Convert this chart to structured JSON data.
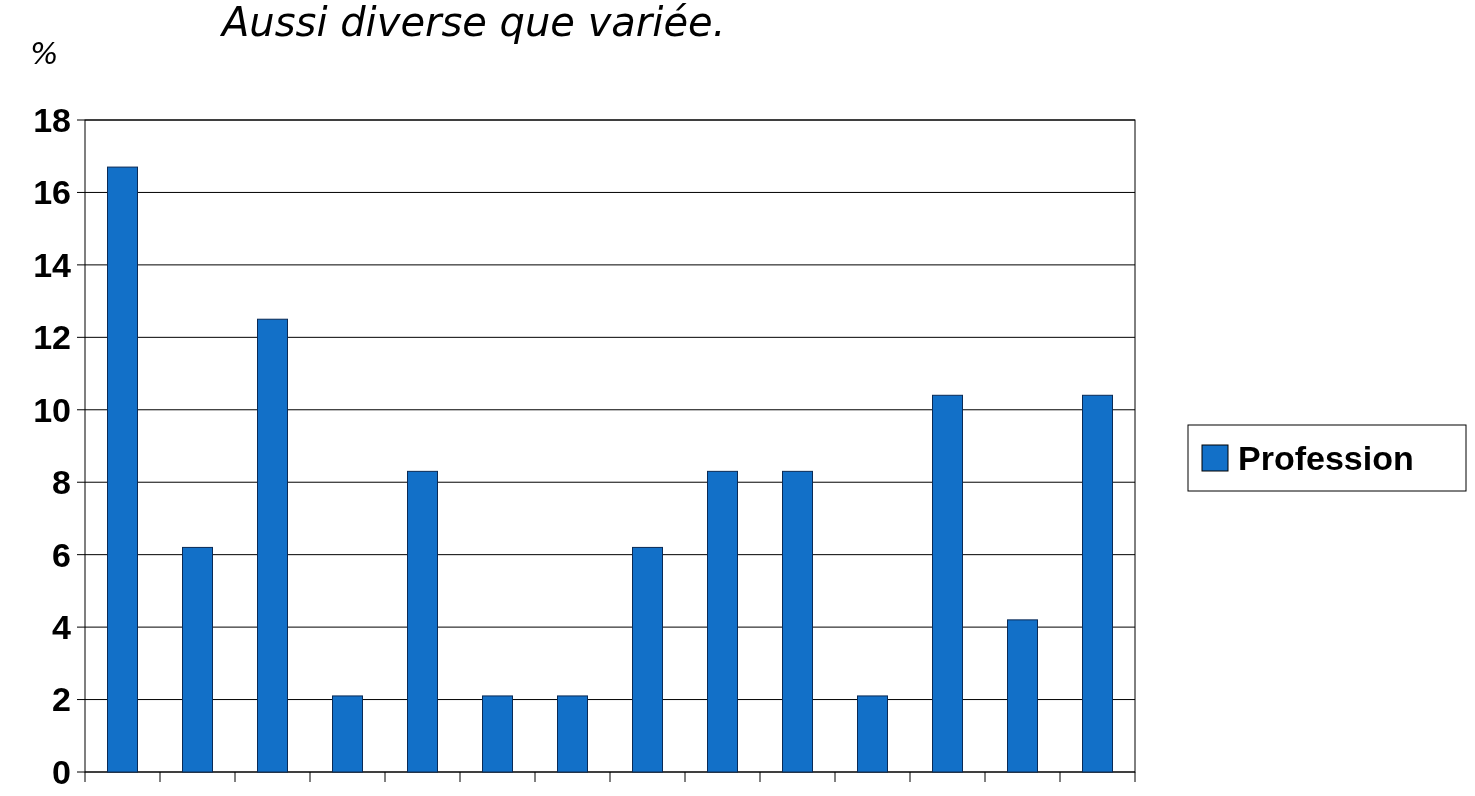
{
  "chart_data": {
    "type": "bar",
    "title": "Aussi diverse que variée.",
    "ylabel": "%",
    "categories": [
      null,
      null,
      null,
      null,
      null,
      null,
      null,
      null,
      null,
      null,
      null,
      null,
      null,
      null
    ],
    "series": [
      {
        "name": "Profession",
        "color": "#1270c8",
        "values": [
          16.7,
          6.2,
          12.5,
          2.1,
          8.3,
          2.1,
          2.1,
          6.2,
          8.3,
          8.3,
          2.1,
          10.4,
          4.2,
          10.4
        ]
      }
    ],
    "ylim": [
      0,
      18
    ],
    "yticks": [
      0,
      2,
      4,
      6,
      8,
      10,
      12,
      14,
      16,
      18
    ],
    "grid": "y",
    "legend": "right"
  }
}
